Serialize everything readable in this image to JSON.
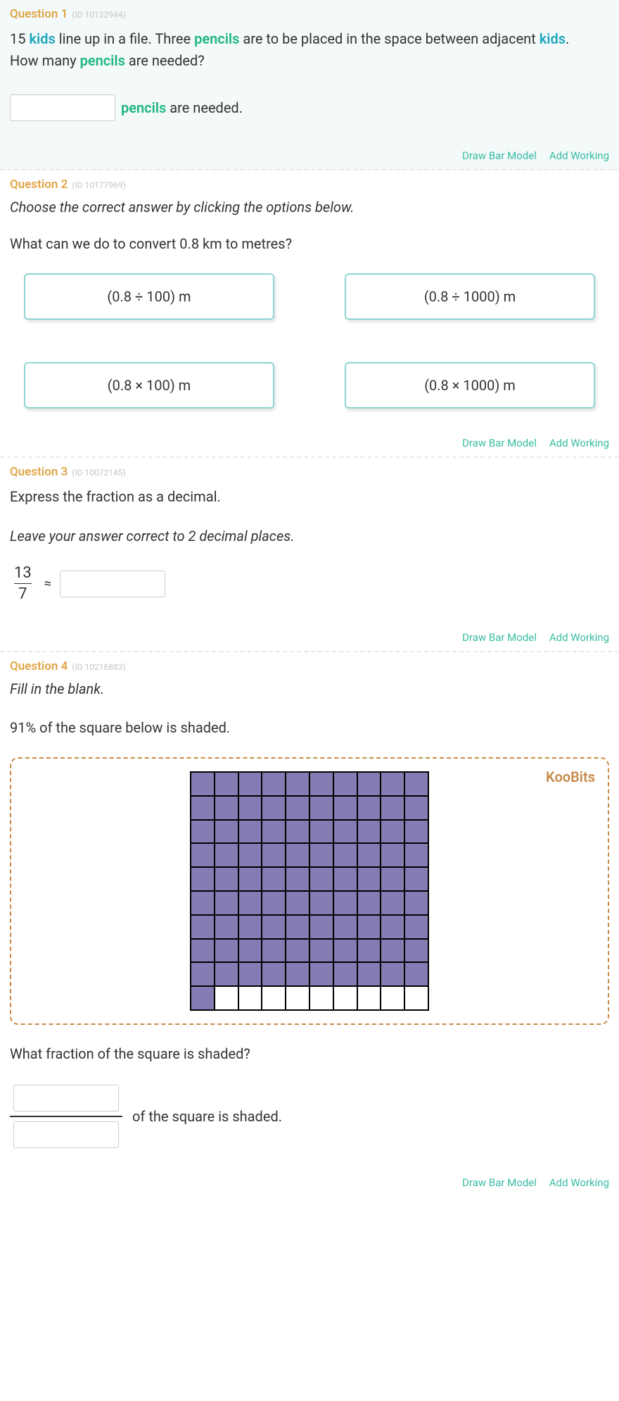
{
  "actions": {
    "draw": "Draw Bar Model",
    "add": "Add Working"
  },
  "q1": {
    "label": "Question 1",
    "id": "(ID 10122944)",
    "text_parts": {
      "p1a": "15 ",
      "p1_kids": "kids",
      "p1b": " line up in a file. Three ",
      "p1_pencils": "pencils",
      "p1c": " are to be placed in the space between adjacent ",
      "p1_kids2": "kids",
      "p1d": ".",
      "p2a": "How many ",
      "p2_pencils": "pencils",
      "p2b": " are needed?"
    },
    "answer": {
      "ans_pencils": "pencils",
      "ans_rest": " are needed."
    }
  },
  "q2": {
    "label": "Question 2",
    "id": "(ID 10177969)",
    "instruction": "Choose the correct answer by clicking the options below.",
    "prompt": "What can we do to convert 0.8 km to metres?",
    "options": [
      "(0.8 ÷ 100) m",
      "(0.8 ÷ 1000) m",
      "(0.8 × 100) m",
      "(0.8 × 1000) m"
    ]
  },
  "q3": {
    "label": "Question 3",
    "id": "(ID 10072145)",
    "line1": "Express the fraction as a decimal.",
    "line2": "Leave your answer correct to 2 decimal places.",
    "fraction": {
      "num": "13",
      "den": "7"
    },
    "approx": "≈"
  },
  "q4": {
    "label": "Question 4",
    "id": "(ID 10216883)",
    "instruction": "Fill in the blank.",
    "statement": "91% of the square below is shaded.",
    "koobits": "KooBits",
    "grid": {
      "total": 100,
      "shaded": 91,
      "shaded_color": "#857cb4",
      "unshaded_color": "#ffffff"
    },
    "question": "What fraction of the square is shaded?",
    "answer_suffix": "of the square is shaded."
  }
}
